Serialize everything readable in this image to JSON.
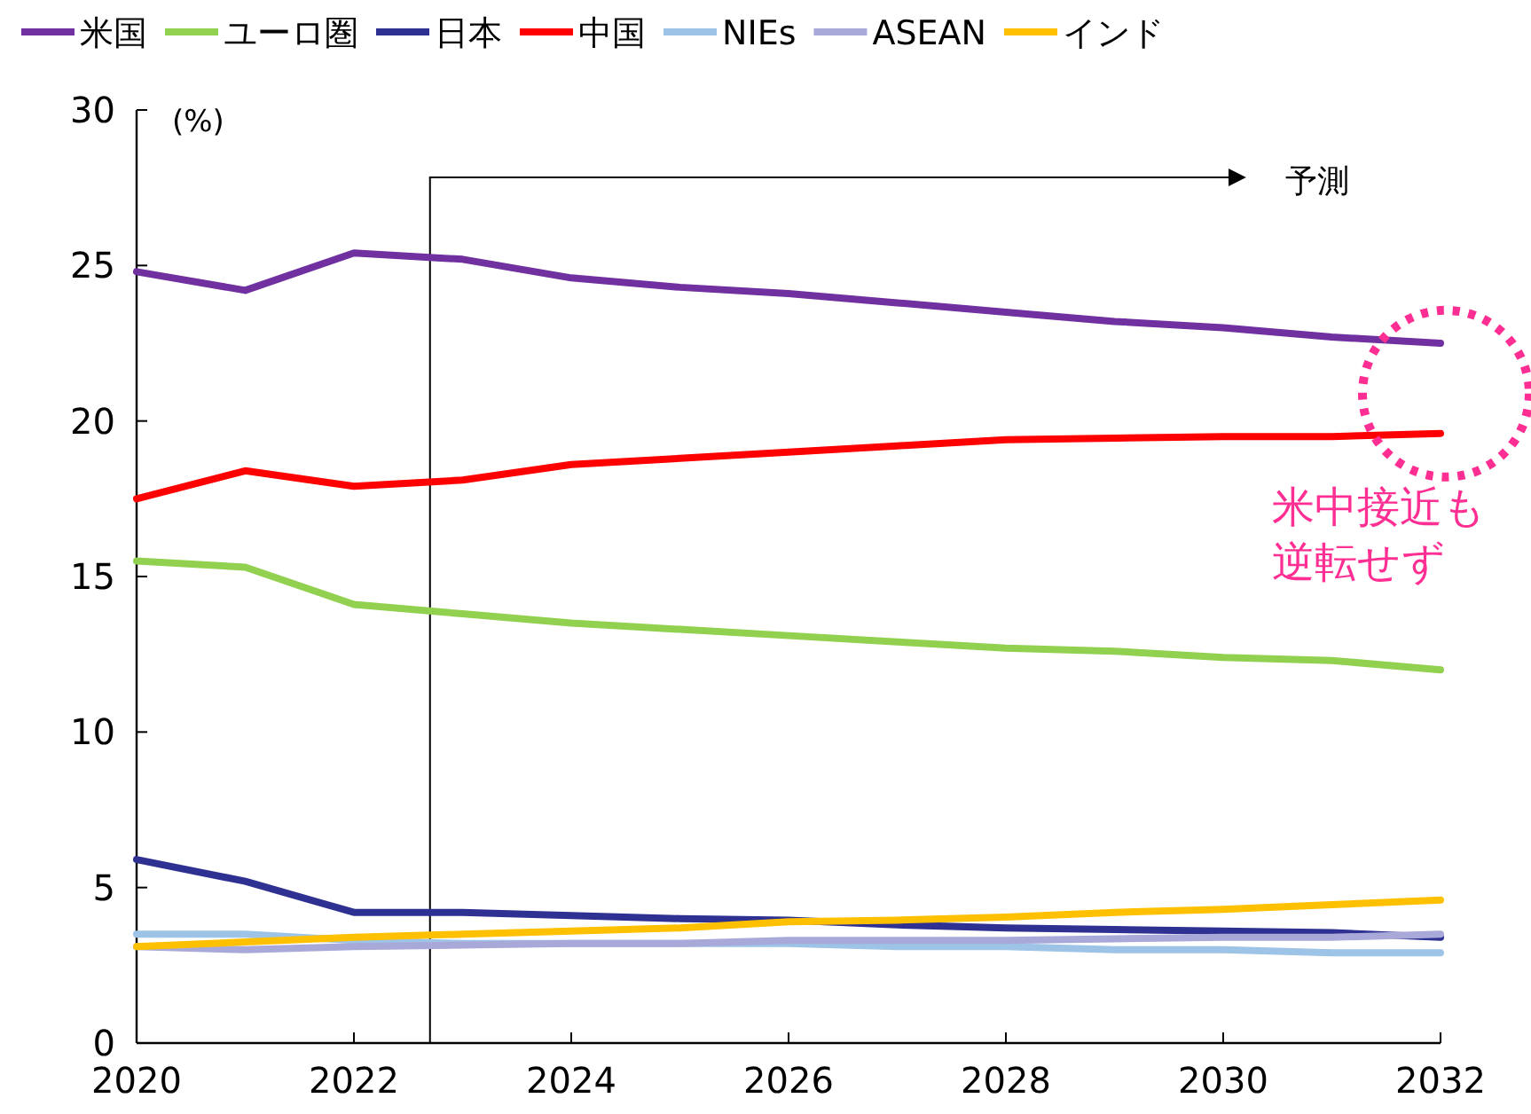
{
  "chart_data": {
    "type": "line",
    "ylabel": "(%)",
    "x": [
      2020,
      2021,
      2022,
      2023,
      2024,
      2025,
      2026,
      2027,
      2028,
      2029,
      2030,
      2031,
      2032
    ],
    "xlim": [
      2020,
      2032
    ],
    "xticks": [
      2020,
      2022,
      2024,
      2026,
      2028,
      2030,
      2032
    ],
    "ylim": [
      0,
      30
    ],
    "yticks": [
      0,
      5,
      10,
      15,
      20,
      25,
      30
    ],
    "grid": false,
    "legend": "top",
    "marker": "none",
    "line_style": "solid",
    "series": [
      {
        "name": "米国",
        "color": "#7030a0",
        "values": [
          24.8,
          24.2,
          25.4,
          25.2,
          24.6,
          24.3,
          24.1,
          23.8,
          23.5,
          23.2,
          23.0,
          22.7,
          22.5
        ]
      },
      {
        "name": "ユーロ圏",
        "color": "#92d050",
        "values": [
          15.5,
          15.3,
          14.1,
          13.8,
          13.5,
          13.3,
          13.1,
          12.9,
          12.7,
          12.6,
          12.4,
          12.3,
          12.0
        ]
      },
      {
        "name": "日本",
        "color": "#2e3192",
        "values": [
          5.9,
          5.2,
          4.2,
          4.2,
          4.1,
          4.0,
          3.95,
          3.8,
          3.7,
          3.65,
          3.6,
          3.55,
          3.4
        ]
      },
      {
        "name": "中国",
        "color": "#ff0000",
        "values": [
          17.5,
          18.4,
          17.9,
          18.1,
          18.6,
          18.8,
          19.0,
          19.2,
          19.4,
          19.45,
          19.5,
          19.5,
          19.6
        ]
      },
      {
        "name": "NIEs",
        "color": "#9dc3e6",
        "values": [
          3.5,
          3.5,
          3.3,
          3.2,
          3.2,
          3.2,
          3.2,
          3.1,
          3.1,
          3.0,
          3.0,
          2.9,
          2.9
        ]
      },
      {
        "name": "ASEAN",
        "color": "#a9a9d9",
        "values": [
          3.1,
          3.0,
          3.1,
          3.15,
          3.2,
          3.2,
          3.3,
          3.3,
          3.3,
          3.35,
          3.4,
          3.4,
          3.5
        ]
      },
      {
        "name": "インド",
        "color": "#ffc000",
        "values": [
          3.1,
          3.25,
          3.4,
          3.5,
          3.6,
          3.7,
          3.9,
          3.95,
          4.05,
          4.2,
          4.3,
          4.45,
          4.6
        ]
      }
    ],
    "ref_lines": [
      {
        "axis": "x",
        "value": 2022.7,
        "label": "予測",
        "color": "#000000"
      }
    ],
    "annotations": [
      "米中接近も逆転せず"
    ]
  }
}
